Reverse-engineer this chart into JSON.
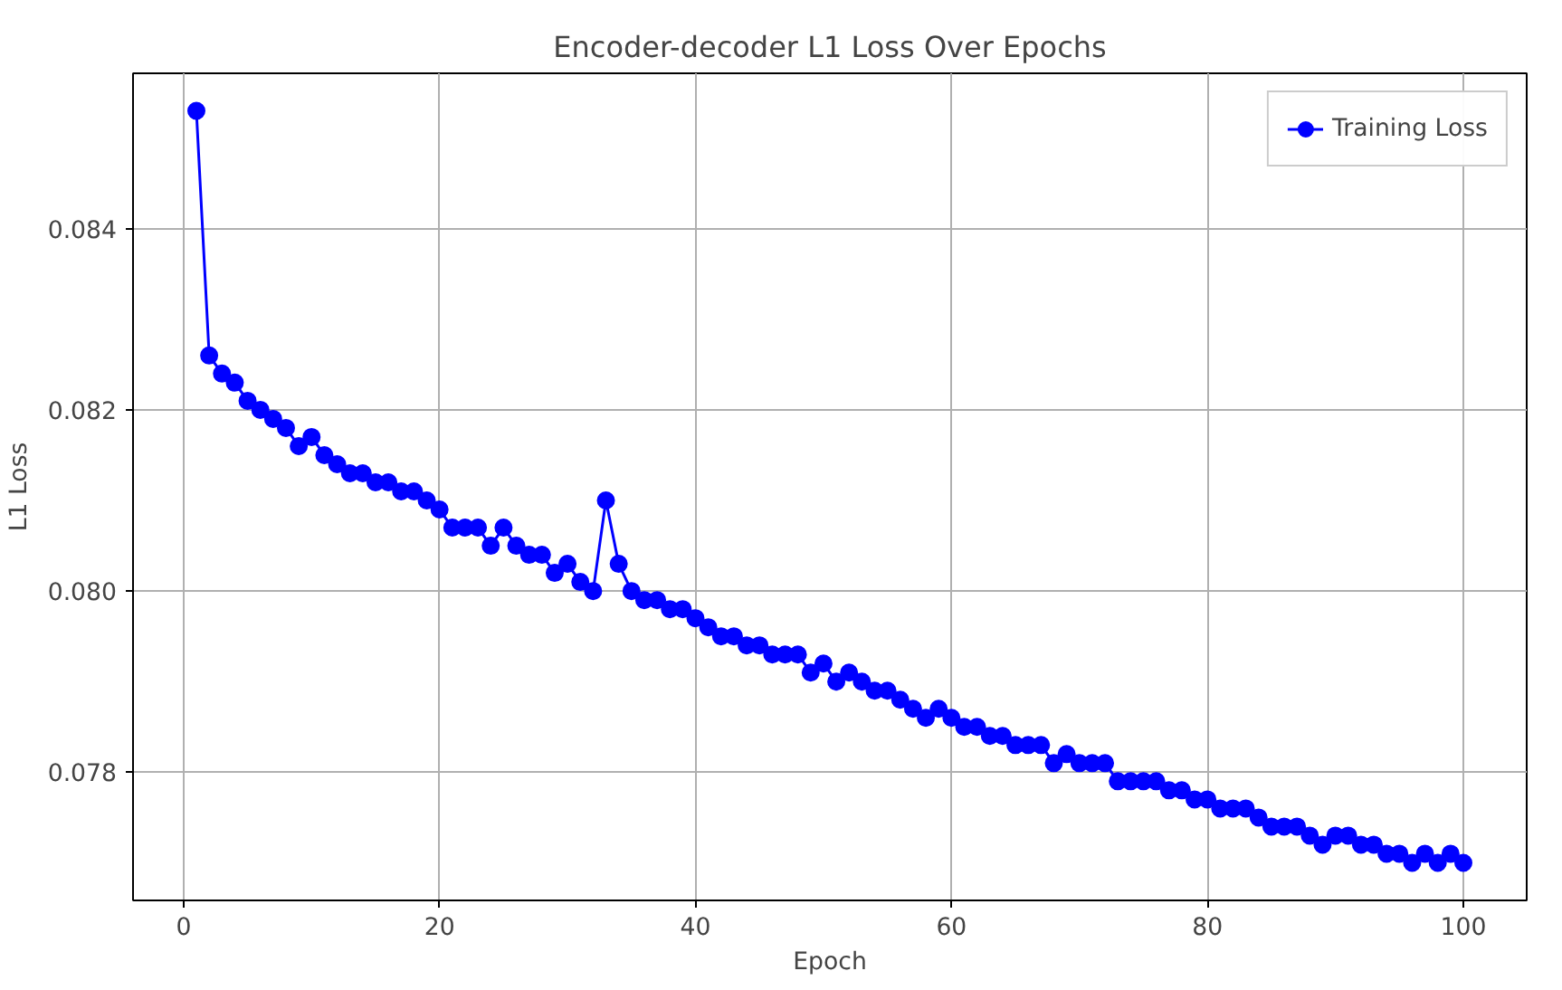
{
  "chart_data": {
    "type": "line",
    "title": "Encoder-decoder L1 Loss Over Epochs",
    "xlabel": "Epoch",
    "ylabel": "L1 Loss",
    "x": [
      1,
      2,
      3,
      4,
      5,
      6,
      7,
      8,
      9,
      10,
      11,
      12,
      13,
      14,
      15,
      16,
      17,
      18,
      19,
      20,
      21,
      22,
      23,
      24,
      25,
      26,
      27,
      28,
      29,
      30,
      31,
      32,
      33,
      34,
      35,
      36,
      37,
      38,
      39,
      40,
      41,
      42,
      43,
      44,
      45,
      46,
      47,
      48,
      49,
      50,
      51,
      52,
      53,
      54,
      55,
      56,
      57,
      58,
      59,
      60,
      61,
      62,
      63,
      64,
      65,
      66,
      67,
      68,
      69,
      70,
      71,
      72,
      73,
      74,
      75,
      76,
      77,
      78,
      79,
      80,
      81,
      82,
      83,
      84,
      85,
      86,
      87,
      88,
      89,
      90,
      91,
      92,
      93,
      94,
      95,
      96,
      97,
      98,
      99,
      100
    ],
    "series": [
      {
        "name": "Training Loss",
        "color": "#0000ff",
        "values": [
          0.0853,
          0.0826,
          0.0824,
          0.0823,
          0.0821,
          0.082,
          0.0819,
          0.0818,
          0.0816,
          0.0817,
          0.0815,
          0.0814,
          0.0813,
          0.0813,
          0.0812,
          0.0812,
          0.0811,
          0.0811,
          0.081,
          0.0809,
          0.0807,
          0.0807,
          0.0807,
          0.0805,
          0.0807,
          0.0805,
          0.0804,
          0.0804,
          0.0802,
          0.0803,
          0.0801,
          0.08,
          0.081,
          0.0803,
          0.08,
          0.0799,
          0.0799,
          0.0798,
          0.0798,
          0.0797,
          0.0796,
          0.0795,
          0.0795,
          0.0794,
          0.0794,
          0.0793,
          0.0793,
          0.0793,
          0.0791,
          0.0792,
          0.079,
          0.0791,
          0.079,
          0.0789,
          0.0789,
          0.0788,
          0.0787,
          0.0786,
          0.0787,
          0.0786,
          0.0785,
          0.0785,
          0.0784,
          0.0784,
          0.0783,
          0.0783,
          0.0783,
          0.0781,
          0.0782,
          0.0781,
          0.0781,
          0.0781,
          0.0779,
          0.0779,
          0.0779,
          0.0779,
          0.0778,
          0.0778,
          0.0777,
          0.0777,
          0.0776,
          0.0776,
          0.0776,
          0.0775,
          0.0774,
          0.0774,
          0.0774,
          0.0773,
          0.0772,
          0.0773,
          0.0773,
          0.0772,
          0.0772,
          0.0771,
          0.0771,
          0.077,
          0.0771,
          0.077,
          0.0771,
          0.077
        ]
      }
    ],
    "xlim": [
      -3.95,
      104.95
    ],
    "ylim": [
      0.076585,
      0.085715
    ],
    "xticks": [
      0,
      20,
      40,
      60,
      80,
      100
    ],
    "yticks": [
      0.078,
      {
        "value": 0.08,
        "label": "0.080"
      },
      0.082,
      0.084
    ],
    "grid": true,
    "legend": "top right",
    "marker": "circle",
    "line_style": "solid"
  }
}
